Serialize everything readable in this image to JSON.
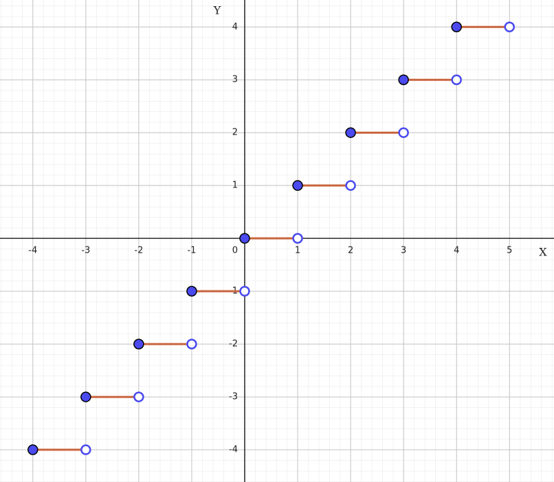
{
  "chart_data": {
    "type": "step",
    "x": [
      -4,
      -3,
      -2,
      -1,
      0,
      1,
      2,
      3,
      4
    ],
    "x_end": [
      -3,
      -2,
      -1,
      0,
      1,
      2,
      3,
      4,
      5
    ],
    "values": [
      -4,
      -3,
      -2,
      -1,
      0,
      1,
      2,
      3,
      4
    ],
    "line_color": "#c8643c",
    "closed_color": "#4a4aee",
    "open_color": "#4a4aee",
    "xlabel": "X",
    "ylabel": "Y",
    "origin_label": "0",
    "xlim": [
      -4.62,
      5.84
    ],
    "ylim": [
      -4.61,
      4.51
    ],
    "xticks": [
      -4,
      -3,
      -2,
      -1,
      1,
      2,
      3,
      4,
      5
    ],
    "yticks": [
      -4,
      -3,
      -2,
      -1,
      1,
      2,
      3,
      4
    ],
    "grid": true,
    "minor_grid": true
  }
}
